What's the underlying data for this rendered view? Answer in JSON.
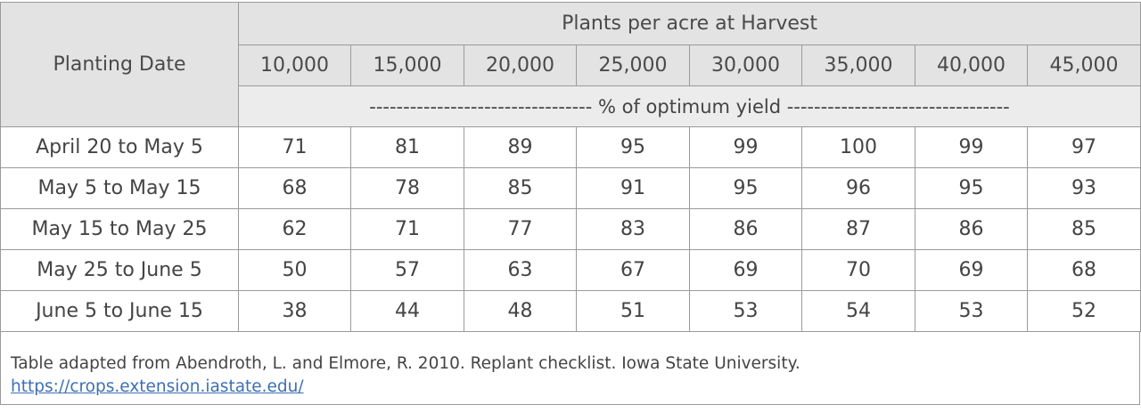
{
  "table": {
    "row_header_label": "Planting Date",
    "group_header": "Plants per acre at Harvest",
    "columns": [
      "10,000",
      "15,000",
      "20,000",
      "25,000",
      "30,000",
      "35,000",
      "40,000",
      "45,000"
    ],
    "unit_row": "--------------------------------- % of optimum yield ---------------------------------",
    "rows": [
      {
        "label": "April 20 to May 5",
        "values": [
          "71",
          "81",
          "89",
          "95",
          "99",
          "100",
          "99",
          "97"
        ]
      },
      {
        "label": "May 5 to May 15",
        "values": [
          "68",
          "78",
          "85",
          "91",
          "95",
          "96",
          "95",
          "93"
        ]
      },
      {
        "label": "May 15 to May 25",
        "values": [
          "62",
          "71",
          "77",
          "83",
          "86",
          "87",
          "86",
          "85"
        ]
      },
      {
        "label": "May 25 to June 5",
        "values": [
          "50",
          "57",
          "63",
          "67",
          "69",
          "70",
          "69",
          "68"
        ]
      },
      {
        "label": "June 5 to June 15",
        "values": [
          "38",
          "44",
          "48",
          "51",
          "53",
          "54",
          "53",
          "52"
        ]
      }
    ]
  },
  "footnote": {
    "text": "Table adapted from Abendroth, L. and Elmore, R. 2010. Replant checklist. Iowa State University.",
    "link": "https://crops.extension.iastate.edu/"
  },
  "colors": {
    "header_bg": "#e3e3e4",
    "border": "#9a9a9a",
    "link": "#3d6fb6"
  }
}
